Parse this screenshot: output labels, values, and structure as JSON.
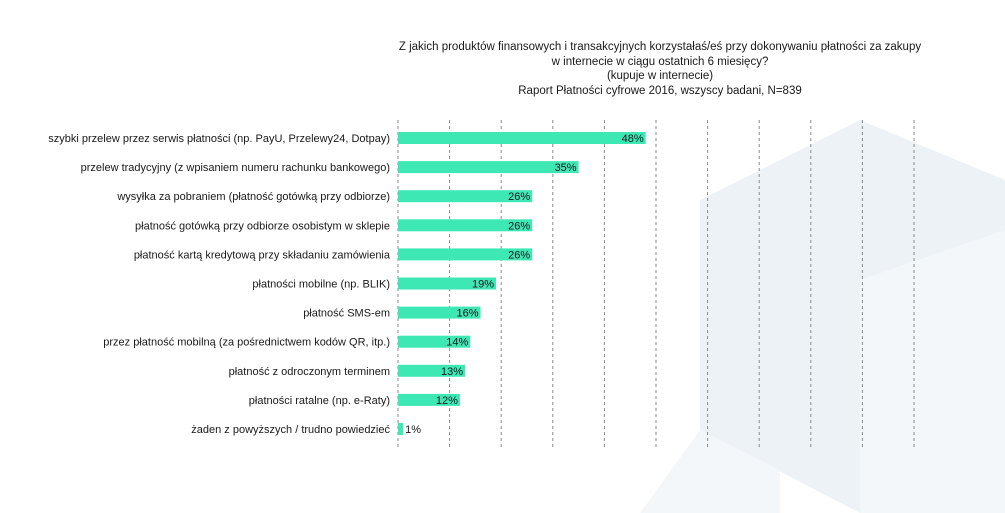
{
  "title_lines": [
    "Z jakich produktów finansowych i transakcyjnych korzystałaś/eś przy dokonywaniu płatności za zakupy",
    "w internecie w ciągu ostatnich 6 miesięcy?",
    "(kupuje w internecie)",
    "Raport Płatności cyfrowe 2016, wszyscy badani, N=839"
  ],
  "colors": {
    "bar": "#3ee8b5",
    "gridline": "#8a8a8a",
    "background_shape": "#edf2f7",
    "background_shape_light": "#f4f7fa"
  },
  "chart_data": {
    "type": "bar",
    "orientation": "horizontal",
    "categories": [
      "szybki przelew przez serwis płatności (np. PayU, Przelewy24, Dotpay)",
      "przelew tradycyjny (z wpisaniem numeru rachunku bankowego)",
      "wysyłka za pobraniem (płatność gotówką przy odbiorze)",
      "płatność gotówką przy odbiorze osobistym w sklepie",
      "płatność kartą kredytową przy składaniu zamówienia",
      "płatności mobilne (np. BLIK)",
      "płatność SMS-em",
      "przez płatność mobilną (za pośrednictwem kodów QR, itp.)",
      "płatność z odroczonym terminem",
      "płatności ratalne (np. e-Raty)",
      "żaden z powyższych / trudno powiedzieć"
    ],
    "values": [
      48,
      35,
      26,
      26,
      26,
      19,
      16,
      14,
      13,
      12,
      1
    ],
    "value_labels": [
      "48%",
      "35%",
      "26%",
      "26%",
      "26%",
      "19%",
      "16%",
      "14%",
      "13%",
      "12%",
      "1%"
    ],
    "xlim": [
      0,
      100
    ],
    "grid": "vertical dashed",
    "legend": "none"
  }
}
